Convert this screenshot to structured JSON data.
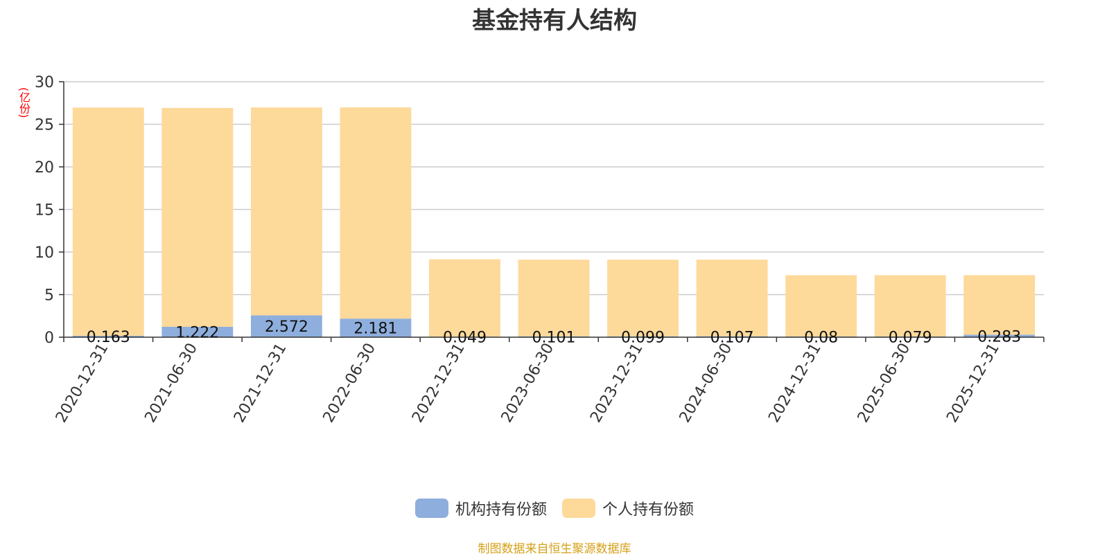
{
  "chart_data": {
    "type": "bar",
    "stacked": true,
    "title": "基金持有人结构",
    "ylabel": "(亿份)",
    "ylim": [
      0,
      30
    ],
    "yticks": [
      0,
      5,
      10,
      15,
      20,
      25,
      30
    ],
    "grid": true,
    "legend_position": "bottom-center",
    "categories": [
      "2020-12-31",
      "2021-06-30",
      "2021-12-31",
      "2022-06-30",
      "2022-12-31",
      "2023-06-30",
      "2023-12-31",
      "2024-06-30",
      "2024-12-31",
      "2025-06-30",
      "2025-12-31"
    ],
    "series": [
      {
        "name": "机构持有份额",
        "color": "#8eaedd",
        "values": [
          0.163,
          1.222,
          2.572,
          2.181,
          0.049,
          0.101,
          0.099,
          0.107,
          0.08,
          0.079,
          0.283
        ],
        "labels": [
          "0.163",
          "1.222",
          "2.572",
          "2.181",
          "0.049",
          "0.101",
          "0.099",
          "0.107",
          "0.08",
          "0.079",
          "0.283"
        ]
      },
      {
        "name": "个人持有份额",
        "color": "#fdd99a",
        "values": [
          26.8,
          25.7,
          24.4,
          24.8,
          9.1,
          9.0,
          9.0,
          9.0,
          7.2,
          7.2,
          7.0
        ]
      }
    ],
    "source": "制图数据来自恒生聚源数据库"
  }
}
